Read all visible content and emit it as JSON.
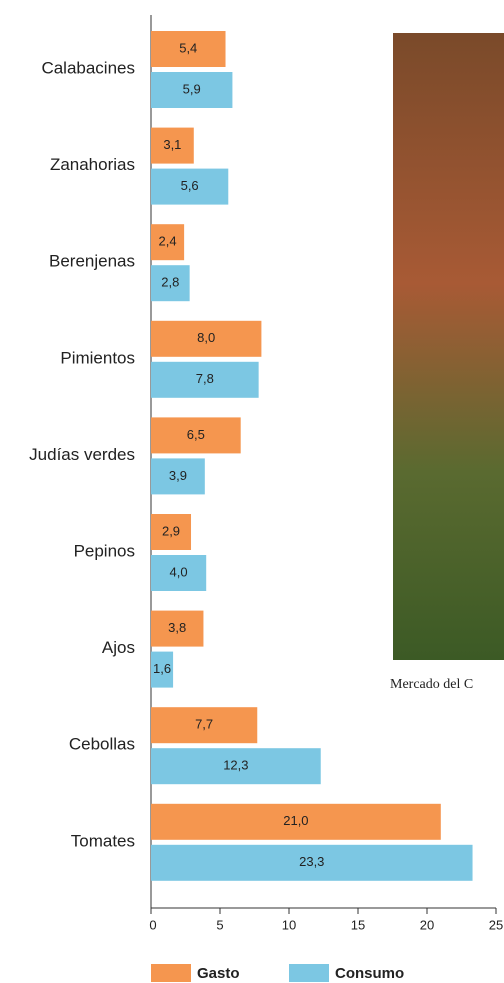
{
  "chart_data": {
    "type": "hbar",
    "categories": [
      "Calabacines",
      "Zanahorias",
      "Berenjenas",
      "Pimientos",
      "Judías verdes",
      "Pepinos",
      "Ajos",
      "Cebollas",
      "Tomates"
    ],
    "series": [
      {
        "name": "Gasto",
        "color": "#f5964f",
        "values": [
          5.4,
          3.1,
          2.4,
          8.0,
          6.5,
          2.9,
          3.8,
          7.7,
          21.0
        ],
        "value_labels": [
          "5,4",
          "3,1",
          "2,4",
          "8,0",
          "6,5",
          "2,9",
          "3,8",
          "7,7",
          "21,0"
        ]
      },
      {
        "name": "Consumo",
        "color": "#7cc7e3",
        "values": [
          5.9,
          5.6,
          2.8,
          7.8,
          3.9,
          4.0,
          1.6,
          12.3,
          23.3
        ],
        "value_labels": [
          "5,9",
          "5,6",
          "2,8",
          "7,8",
          "3,9",
          "4,0",
          "1,6",
          "12,3",
          "23,3"
        ]
      }
    ],
    "xlim": [
      0,
      25
    ],
    "xticks": [
      0,
      5,
      10,
      15,
      20,
      25
    ],
    "caption": "Mercado del C"
  }
}
